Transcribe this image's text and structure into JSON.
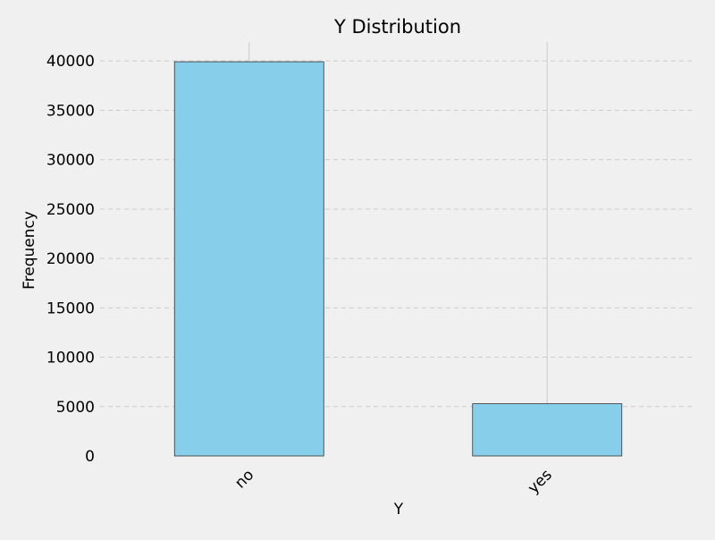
{
  "chart_data": {
    "type": "bar",
    "title": "Y Distribution",
    "xlabel": "Y",
    "ylabel": "Frequency",
    "categories": [
      "no",
      "yes"
    ],
    "values": [
      39922,
      5289
    ],
    "ylim": [
      0,
      41918
    ],
    "yticks": [
      0,
      5000,
      10000,
      15000,
      20000,
      25000,
      30000,
      35000,
      40000
    ],
    "ytick_labels": [
      "0",
      "5000",
      "10000",
      "15000",
      "20000",
      "25000",
      "30000",
      "35000",
      "40000"
    ],
    "grid": true,
    "legend": false,
    "colors": {
      "bar": "#87ceeb",
      "edge": "#333333",
      "grid": "#cccccc",
      "background": "#f0f0f0"
    }
  }
}
